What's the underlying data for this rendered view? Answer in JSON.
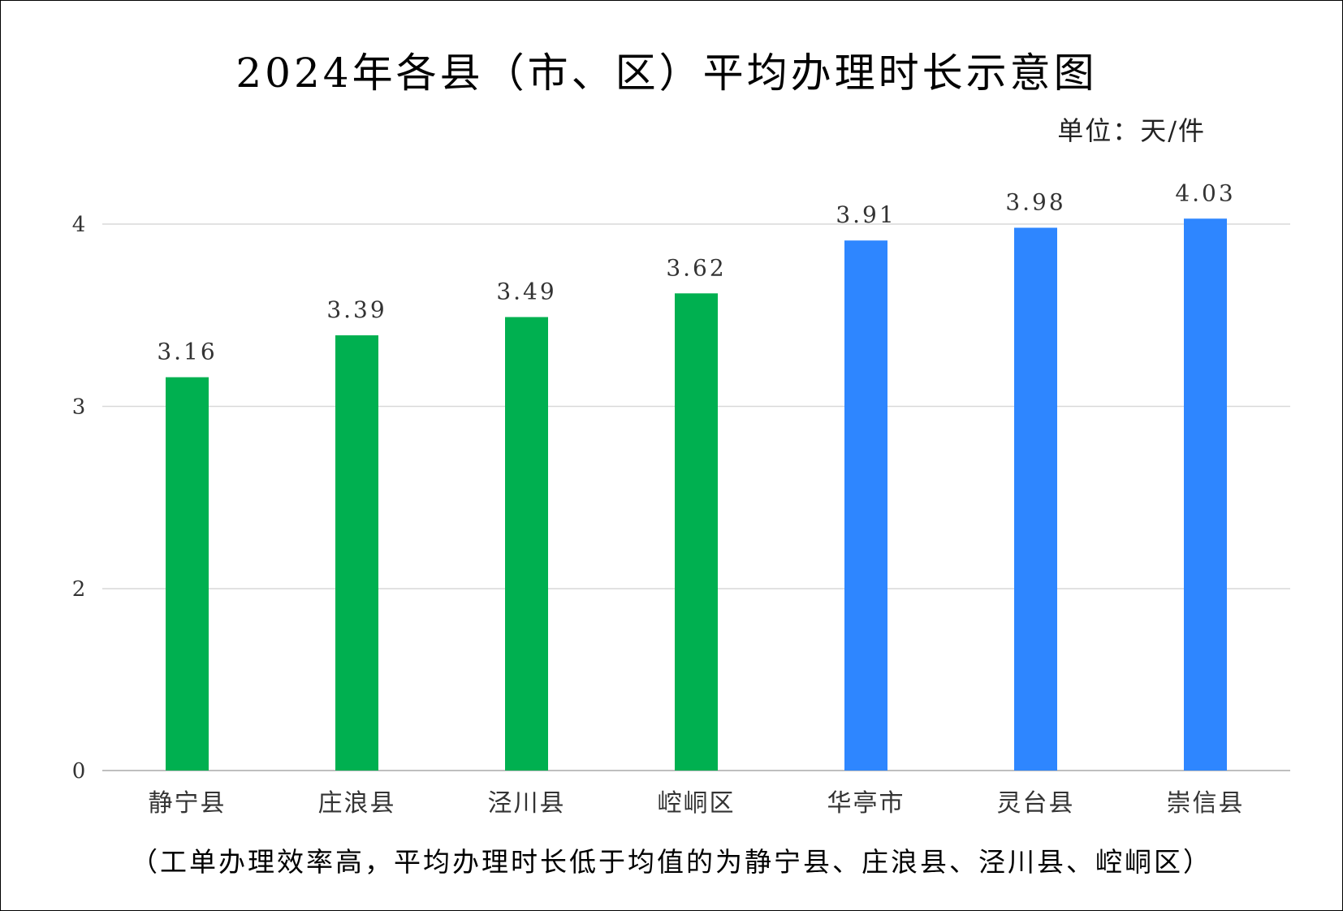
{
  "chart_data": {
    "type": "bar",
    "title": "2024年各县（市、区）平均办理时长示意图",
    "unit_label": "单位：天/件",
    "categories": [
      "静宁县",
      "庄浪县",
      "泾川县",
      "崆峒区",
      "华亭市",
      "灵台县",
      "崇信县"
    ],
    "values": [
      3.16,
      3.39,
      3.49,
      3.62,
      3.91,
      3.98,
      4.03
    ],
    "value_labels": [
      "3.16",
      "3.39",
      "3.49",
      "3.62",
      "3.91",
      "3.98",
      "4.03"
    ],
    "bar_colors": [
      "#00b050",
      "#00b050",
      "#00b050",
      "#00b050",
      "#2e86ff",
      "#2e86ff",
      "#2e86ff"
    ],
    "y_ticks": [
      0,
      2,
      3,
      4
    ],
    "y_tick_labels": [
      "0",
      "2",
      "3",
      "4"
    ],
    "ylim": [
      0,
      4
    ],
    "y_scale": "broken: 0 to 2 compressed, 2 to 4 linear",
    "grid": true,
    "legend": "none",
    "footnote": "（工单办理效率高，平均办理时长低于均值的为静宁县、庄浪县、泾川县、崆峒区）"
  }
}
